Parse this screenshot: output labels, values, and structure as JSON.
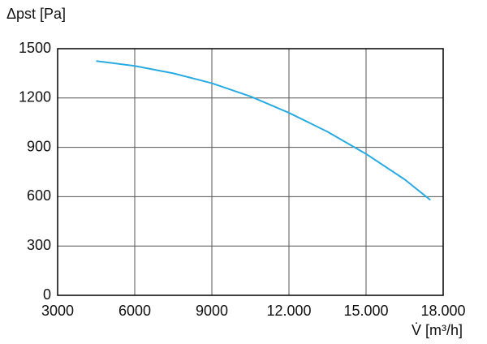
{
  "chart_data": {
    "type": "line",
    "y_label": "Δpst [Pa]",
    "x_label": "V̇ [m³/h]",
    "x": [
      4500,
      6000,
      7500,
      9000,
      10500,
      12000,
      13500,
      15000,
      16500,
      17500
    ],
    "series": [
      {
        "color": "#29abe2",
        "values": [
          1425,
          1395,
          1350,
          1290,
          1210,
          1110,
          995,
          860,
          705,
          580
        ]
      }
    ],
    "xlim": [
      3000,
      18000
    ],
    "xticks": [
      3000,
      6000,
      9000,
      {
        "value": 12000,
        "label": "12.000"
      },
      {
        "value": 15000,
        "label": "15.000"
      },
      {
        "value": 18000,
        "label": "18.000"
      }
    ],
    "ylim": [
      0,
      1500
    ],
    "yticks": [
      0,
      300,
      600,
      900,
      1200,
      1500
    ],
    "grid": true
  }
}
